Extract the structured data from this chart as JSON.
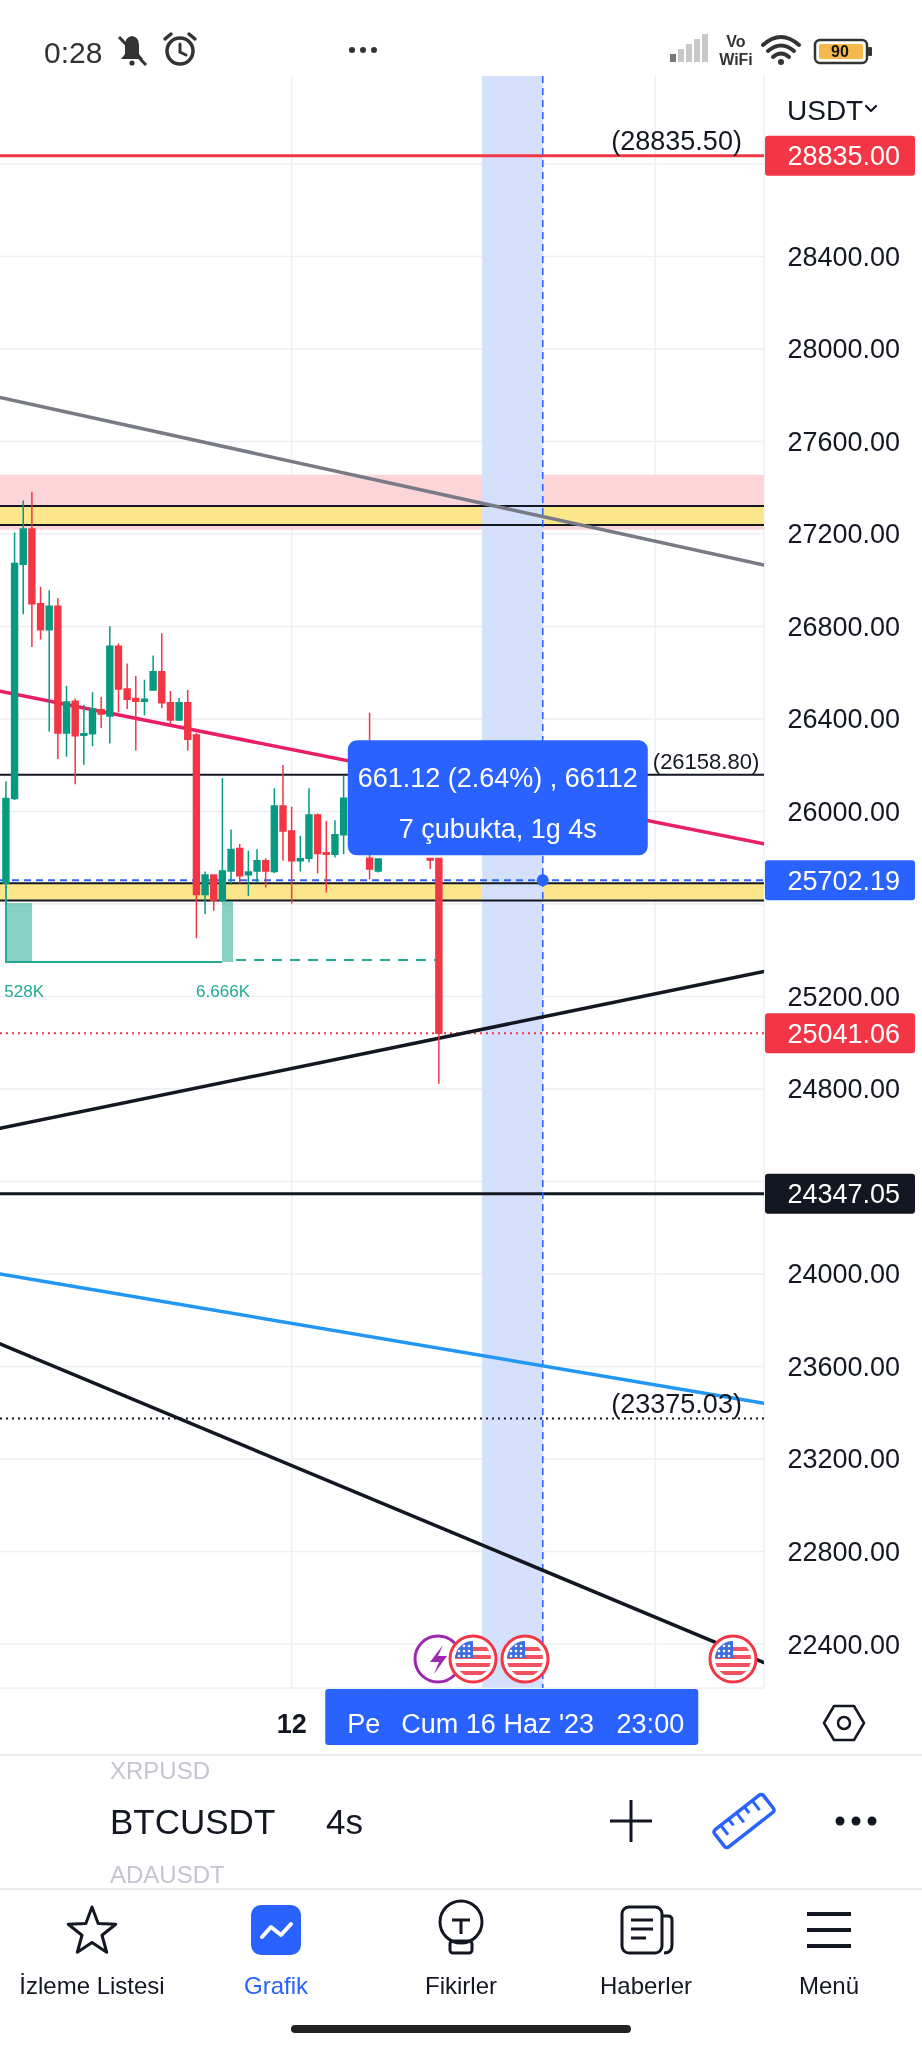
{
  "chart_data": {
    "type": "candlestick",
    "title": "BTCUSDT",
    "subtitle": "4s",
    "ylabel": "USDT",
    "x": [
      "2023-06-06T15:00",
      "2023-06-06T19:00",
      "2023-06-06T23:00",
      "2023-06-07T03:00",
      "2023-06-07T07:00",
      "2023-06-07T11:00",
      "2023-06-07T15:00",
      "2023-06-07T19:00",
      "2023-06-07T23:00",
      "2023-06-08T03:00",
      "2023-06-08T07:00",
      "2023-06-08T11:00",
      "2023-06-08T15:00",
      "2023-06-08T19:00",
      "2023-06-08T23:00",
      "2023-06-09T03:00",
      "2023-06-09T07:00",
      "2023-06-09T11:00",
      "2023-06-09T15:00",
      "2023-06-09T19:00",
      "2023-06-09T23:00",
      "2023-06-10T03:00",
      "2023-06-10T07:00",
      "2023-06-10T11:00",
      "2023-06-10T15:00",
      "2023-06-10T19:00",
      "2023-06-10T23:00",
      "2023-06-11T03:00",
      "2023-06-11T07:00",
      "2023-06-11T11:00",
      "2023-06-11T15:00",
      "2023-06-11T19:00",
      "2023-06-11T23:00",
      "2023-06-12T03:00",
      "2023-06-12T07:00",
      "2023-06-12T11:00",
      "2023-06-12T15:00",
      "2023-06-12T19:00",
      "2023-06-12T23:00",
      "2023-06-13T03:00",
      "2023-06-13T15:00",
      "2023-06-13T19:00",
      "2023-06-14T19:00",
      "2023-06-14T23:00"
    ],
    "ohlc": [
      [
        25691,
        26130,
        25680,
        26056
      ],
      [
        26056,
        27206,
        26050,
        27072
      ],
      [
        27069,
        27345,
        26853,
        27221
      ],
      [
        27221,
        27382,
        26711,
        26898
      ],
      [
        26898,
        26972,
        26744,
        26786
      ],
      [
        26786,
        26957,
        26346,
        26887
      ],
      [
        26887,
        26923,
        26227,
        26339
      ],
      [
        26339,
        26544,
        26237,
        26473
      ],
      [
        26476,
        26488,
        26118,
        26327
      ],
      [
        26331,
        26461,
        26202,
        26336
      ],
      [
        26336,
        26515,
        26282,
        26443
      ],
      [
        26440,
        26495,
        26361,
        26421
      ],
      [
        26413,
        26801,
        26294,
        26714
      ],
      [
        26714,
        26726,
        26428,
        26530
      ],
      [
        26530,
        26640,
        26443,
        26485
      ],
      [
        26488,
        26586,
        26264,
        26476
      ],
      [
        26476,
        26570,
        26416,
        26485
      ],
      [
        26525,
        26674,
        26525,
        26604
      ],
      [
        26604,
        26771,
        26446,
        26470
      ],
      [
        26470,
        26521,
        26376,
        26395
      ],
      [
        26395,
        26491,
        26391,
        26470
      ],
      [
        26470,
        26525,
        26264,
        26312
      ],
      [
        26331,
        26339,
        25452,
        25641
      ],
      [
        25641,
        25740,
        25557,
        25725
      ],
      [
        25725,
        25725,
        25571,
        25616
      ],
      [
        25616,
        26145,
        25610,
        25743
      ],
      [
        25743,
        25922,
        25683,
        25835
      ],
      [
        25840,
        25859,
        25689,
        25722
      ],
      [
        25726,
        25830,
        25635,
        25738
      ],
      [
        25743,
        25837,
        25693,
        25787
      ],
      [
        25787,
        25798,
        25671,
        25743
      ],
      [
        25740,
        26100,
        25733,
        26024
      ],
      [
        26024,
        26201,
        25787,
        25916
      ],
      [
        25916,
        26020,
        25602,
        25787
      ],
      [
        25787,
        25895,
        25740,
        25795
      ],
      [
        25798,
        26100,
        25779,
        25985
      ],
      [
        25985,
        25991,
        25732,
        25818
      ],
      [
        25821,
        25959,
        25650,
        25815
      ],
      [
        25815,
        25962,
        25801,
        25899
      ],
      [
        25899,
        26154,
        25815,
        26057
      ],
      [
        25798,
        26427,
        25707,
        25751
      ],
      [
        25743,
        25797,
        25736,
        25794
      ],
      [
        25797,
        25797,
        25751,
        25790
      ],
      [
        25797,
        25797,
        24823,
        25041.06
      ]
    ],
    "colors": [
      "#089981",
      "#089981",
      "#089981",
      "#f23645",
      "#f23645",
      "#089981",
      "#f23645",
      "#089981",
      "#f23645",
      "#089981",
      "#089981",
      "#f23645",
      "#089981",
      "#f23645",
      "#f23645",
      "#f23645",
      "#089981",
      "#089981",
      "#f23645",
      "#f23645",
      "#089981",
      "#f23645",
      "#f23645",
      "#089981",
      "#f23645",
      "#089981",
      "#089981",
      "#f23645",
      "#089981",
      "#089981",
      "#f23645",
      "#089981",
      "#f23645",
      "#f23645",
      "#089981",
      "#089981",
      "#f23645",
      "#f23645",
      "#089981",
      "#089981",
      "#f23645",
      "#089981",
      "#f23645",
      "#f23645"
    ],
    "series": [
      {
        "type": "line",
        "x": [
          "2023-06-06T12:16",
          "2023-06-21T05:12"
        ],
        "values": [
          26520,
          25860
        ],
        "color": "#e91e63"
      },
      {
        "type": "line",
        "x": [
          "2023-06-06T12:16",
          "2023-06-21T05:12"
        ],
        "values": [
          27790,
          27065
        ],
        "color": "#787b86"
      },
      {
        "type": "line",
        "x": [
          "2023-06-06T12:16",
          "2023-06-21T05:12"
        ],
        "values": [
          24630,
          25308
        ],
        "color": "#131722"
      },
      {
        "type": "line",
        "x": [
          "2023-06-06T12:16",
          "2023-06-21T05:12"
        ],
        "values": [
          24000,
          23441
        ],
        "color": "#2196f3"
      },
      {
        "type": "line",
        "x": [
          "2023-06-06T12:16",
          "2023-06-21T05:12"
        ],
        "values": [
          23698,
          22320
        ],
        "color": "#131722"
      }
    ],
    "xlim": [
      "2023-06-06T12:16",
      "2023-06-21T05:12"
    ],
    "xticks": [
      {
        "value": "2023-06-12T03:00",
        "label": "12"
      },
      {
        "value": "2023-06-16T23:00",
        "label": "Cum 16 Haz '23   23:00"
      },
      {
        "value": "2023-06-19T03:00",
        "label": null
      }
    ],
    "ylim": [
      22210,
      29180
    ],
    "yticks": [
      {
        "value": 22400,
        "label": "22400.00"
      },
      {
        "value": 22800,
        "label": "22800.00"
      },
      {
        "value": 23200,
        "label": "23200.00"
      },
      {
        "value": 23600,
        "label": "23600.00"
      },
      {
        "value": 24000,
        "label": "24000.00"
      },
      {
        "value": 24400,
        "label": null
      },
      {
        "value": 24800,
        "label": "24800.00"
      },
      {
        "value": 25200,
        "label": "25200.00"
      },
      {
        "value": 25600,
        "label": null
      },
      {
        "value": 26000,
        "label": "26000.00"
      },
      {
        "value": 26400,
        "label": "26400.00"
      },
      {
        "value": 26800,
        "label": "26800.00"
      },
      {
        "value": 27200,
        "label": "27200.00"
      },
      {
        "value": 27600,
        "label": "27600.00"
      },
      {
        "value": 28000,
        "label": "28000.00"
      },
      {
        "value": 28400,
        "label": "28400.00"
      },
      {
        "value": 28800,
        "label": null
      }
    ],
    "grid": true,
    "ref_lines": [
      {
        "axis": "y",
        "value": 28835,
        "label": "28835.00",
        "color": "#f23645",
        "line_style": "solid"
      },
      {
        "axis": "y",
        "value": 26158.8,
        "color": "#131722",
        "line_style": "solid"
      },
      {
        "axis": "y",
        "value": 25702.19,
        "label": "25702.19",
        "color": "#2962ff",
        "line_style": "dashed"
      },
      {
        "axis": "y",
        "value": 25041.06,
        "label": "25041.06",
        "color": "#f23645",
        "line_style": "dotted"
      },
      {
        "axis": "y",
        "value": 24347.05,
        "label": "24347.05",
        "color": "#131722",
        "line_style": "solid"
      },
      {
        "axis": "y",
        "value": 23375.03,
        "color": "#131722",
        "line_style": "dotted"
      },
      {
        "axis": "y",
        "value": 27321,
        "color": "#131722",
        "line_style": "solid"
      },
      {
        "axis": "y",
        "value": 27239,
        "color": "#131722",
        "line_style": "solid"
      },
      {
        "axis": "y",
        "value": 25690,
        "color": "#131722",
        "line_style": "solid"
      },
      {
        "axis": "y",
        "value": 25615,
        "color": "#131722",
        "line_style": "solid"
      },
      {
        "axis": "x",
        "value": "2023-06-16T23:00",
        "color": "#2962ff",
        "line_style": "dashed"
      }
    ],
    "bands": [
      {
        "axis": "y",
        "from": 27218,
        "to": 27456,
        "color": "#fbd5d8"
      },
      {
        "axis": "y",
        "from": 27239,
        "to": 27321,
        "color": "#fce68c"
      },
      {
        "axis": "y",
        "from": 25615,
        "to": 25690,
        "color": "#fce68c"
      },
      {
        "axis": "x",
        "from": "2023-06-15T19:00",
        "to": "2023-06-16T23:00",
        "color": "#d5e0fc"
      }
    ],
    "annotations": [
      {
        "text": "(28835.50)",
        "x": "2023-06-20T19:00",
        "y": 28835.5
      },
      {
        "text": "(26158.80)",
        "x": "2023-06-21T03:00",
        "y": 26158.8
      },
      {
        "text": "(23375.03)",
        "x": "2023-06-20T19:00",
        "y": 23375.03
      },
      "528K",
      "6.666K",
      "0:28",
      "Vo",
      "WiFi",
      "90",
      "661.12 (2.64%) , 66112",
      "7 çubukta, 1g 4s",
      "Pe",
      "XRPUSD",
      "ADAUSDT",
      "İzleme Listesi",
      "Grafik",
      "Fikirler",
      "Haberler",
      "Menü"
    ]
  }
}
